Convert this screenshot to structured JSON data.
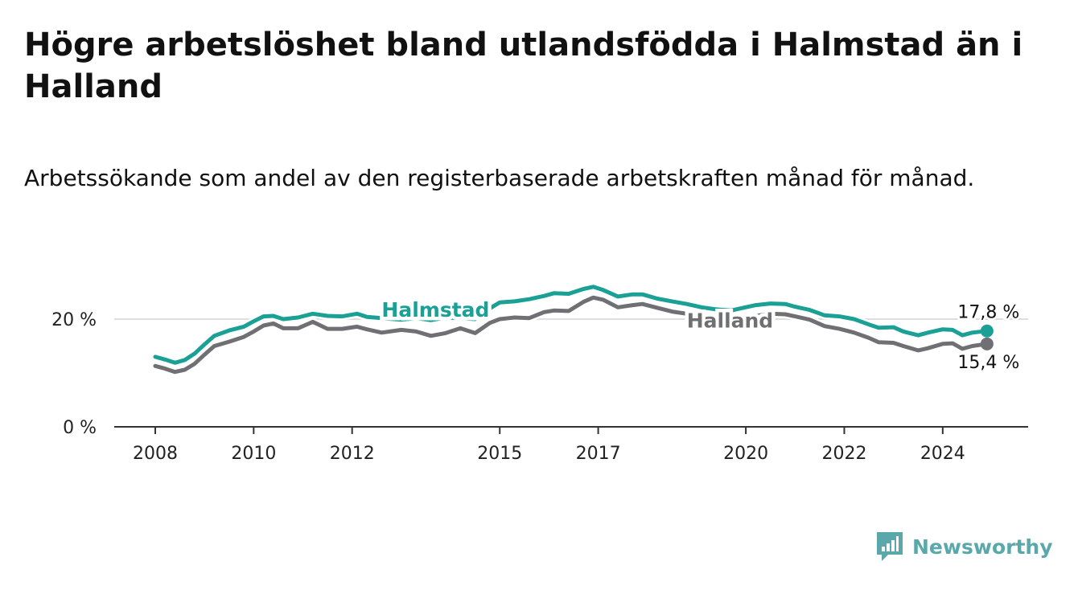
{
  "title": "Högre arbetslöshet bland utlandsfödda i Halmstad än i Halland",
  "subtitle": "Arbetssökande som andel av den registerbaserade arbetskraften månad för månad.",
  "brand": {
    "name": "Newsworthy",
    "icon": "bar-chart-logo-icon",
    "color": "#5aa8aa"
  },
  "chart_data": {
    "type": "line",
    "x_ticks": [
      "2008",
      "2010",
      "2012",
      "2015",
      "2017",
      "2020",
      "2022",
      "2024"
    ],
    "x_range": [
      2007.2,
      2025.8
    ],
    "y_ticks": [
      {
        "value": 0,
        "label": "0 %"
      },
      {
        "value": 20,
        "label": "20 %"
      }
    ],
    "ylim": [
      0,
      30
    ],
    "grid": true,
    "series": [
      {
        "name": "Halmstad",
        "color": "#1aa095",
        "end_label": "17,8 %",
        "points": [
          [
            2008.0,
            13.0
          ],
          [
            2008.2,
            12.5
          ],
          [
            2008.4,
            11.9
          ],
          [
            2008.6,
            12.4
          ],
          [
            2008.8,
            13.6
          ],
          [
            2009.0,
            15.3
          ],
          [
            2009.2,
            16.9
          ],
          [
            2009.5,
            17.9
          ],
          [
            2009.8,
            18.6
          ],
          [
            2010.0,
            19.6
          ],
          [
            2010.2,
            20.5
          ],
          [
            2010.4,
            20.6
          ],
          [
            2010.6,
            20.0
          ],
          [
            2010.9,
            20.3
          ],
          [
            2011.2,
            21.0
          ],
          [
            2011.5,
            20.6
          ],
          [
            2011.8,
            20.5
          ],
          [
            2012.1,
            21.0
          ],
          [
            2012.3,
            20.4
          ],
          [
            2012.6,
            20.2
          ],
          [
            2013.0,
            19.9
          ],
          [
            2013.3,
            20.2
          ],
          [
            2013.6,
            19.8
          ],
          [
            2013.9,
            20.3
          ],
          [
            2014.2,
            20.2
          ],
          [
            2014.5,
            20.0
          ],
          [
            2014.8,
            22.0
          ],
          [
            2015.0,
            23.1
          ],
          [
            2015.3,
            23.3
          ],
          [
            2015.6,
            23.7
          ],
          [
            2015.9,
            24.3
          ],
          [
            2016.1,
            24.8
          ],
          [
            2016.4,
            24.7
          ],
          [
            2016.7,
            25.6
          ],
          [
            2016.9,
            26.0
          ],
          [
            2017.1,
            25.4
          ],
          [
            2017.4,
            24.2
          ],
          [
            2017.7,
            24.6
          ],
          [
            2017.9,
            24.6
          ],
          [
            2018.2,
            23.8
          ],
          [
            2018.5,
            23.3
          ],
          [
            2018.8,
            22.8
          ],
          [
            2019.1,
            22.2
          ],
          [
            2019.4,
            21.8
          ],
          [
            2019.7,
            21.6
          ],
          [
            2019.9,
            22.0
          ],
          [
            2020.2,
            22.6
          ],
          [
            2020.5,
            22.9
          ],
          [
            2020.8,
            22.8
          ],
          [
            2021.0,
            22.3
          ],
          [
            2021.3,
            21.7
          ],
          [
            2021.6,
            20.7
          ],
          [
            2021.9,
            20.5
          ],
          [
            2022.2,
            20.0
          ],
          [
            2022.5,
            19.0
          ],
          [
            2022.7,
            18.4
          ],
          [
            2023.0,
            18.5
          ],
          [
            2023.2,
            17.7
          ],
          [
            2023.5,
            17.0
          ],
          [
            2023.7,
            17.5
          ],
          [
            2024.0,
            18.1
          ],
          [
            2024.2,
            18.0
          ],
          [
            2024.4,
            17.0
          ],
          [
            2024.6,
            17.5
          ],
          [
            2024.9,
            17.8
          ]
        ]
      },
      {
        "name": "Halland",
        "color": "#707074",
        "end_label": "15,4 %",
        "points": [
          [
            2008.0,
            11.3
          ],
          [
            2008.2,
            10.8
          ],
          [
            2008.4,
            10.2
          ],
          [
            2008.6,
            10.6
          ],
          [
            2008.8,
            11.7
          ],
          [
            2009.0,
            13.4
          ],
          [
            2009.2,
            15.0
          ],
          [
            2009.5,
            15.8
          ],
          [
            2009.8,
            16.7
          ],
          [
            2010.0,
            17.7
          ],
          [
            2010.2,
            18.8
          ],
          [
            2010.4,
            19.2
          ],
          [
            2010.6,
            18.3
          ],
          [
            2010.9,
            18.3
          ],
          [
            2011.2,
            19.5
          ],
          [
            2011.5,
            18.2
          ],
          [
            2011.8,
            18.2
          ],
          [
            2012.1,
            18.6
          ],
          [
            2012.3,
            18.1
          ],
          [
            2012.6,
            17.5
          ],
          [
            2013.0,
            18.0
          ],
          [
            2013.3,
            17.7
          ],
          [
            2013.6,
            16.9
          ],
          [
            2013.9,
            17.4
          ],
          [
            2014.2,
            18.3
          ],
          [
            2014.5,
            17.4
          ],
          [
            2014.8,
            19.3
          ],
          [
            2015.0,
            20.0
          ],
          [
            2015.3,
            20.3
          ],
          [
            2015.6,
            20.2
          ],
          [
            2015.9,
            21.3
          ],
          [
            2016.1,
            21.6
          ],
          [
            2016.4,
            21.5
          ],
          [
            2016.7,
            23.2
          ],
          [
            2016.9,
            24.0
          ],
          [
            2017.1,
            23.6
          ],
          [
            2017.4,
            22.2
          ],
          [
            2017.7,
            22.6
          ],
          [
            2017.9,
            22.8
          ],
          [
            2018.2,
            22.1
          ],
          [
            2018.5,
            21.4
          ],
          [
            2018.8,
            21.0
          ],
          [
            2019.1,
            20.5
          ],
          [
            2019.4,
            20.1
          ],
          [
            2019.7,
            19.9
          ],
          [
            2019.9,
            19.9
          ],
          [
            2020.2,
            20.6
          ],
          [
            2020.5,
            21.0
          ],
          [
            2020.8,
            20.9
          ],
          [
            2021.0,
            20.5
          ],
          [
            2021.3,
            19.9
          ],
          [
            2021.6,
            18.7
          ],
          [
            2021.9,
            18.2
          ],
          [
            2022.2,
            17.5
          ],
          [
            2022.5,
            16.5
          ],
          [
            2022.7,
            15.7
          ],
          [
            2023.0,
            15.6
          ],
          [
            2023.2,
            15.0
          ],
          [
            2023.5,
            14.2
          ],
          [
            2023.7,
            14.6
          ],
          [
            2024.0,
            15.4
          ],
          [
            2024.2,
            15.5
          ],
          [
            2024.4,
            14.5
          ],
          [
            2024.6,
            15.0
          ],
          [
            2024.9,
            15.4
          ]
        ]
      }
    ]
  }
}
